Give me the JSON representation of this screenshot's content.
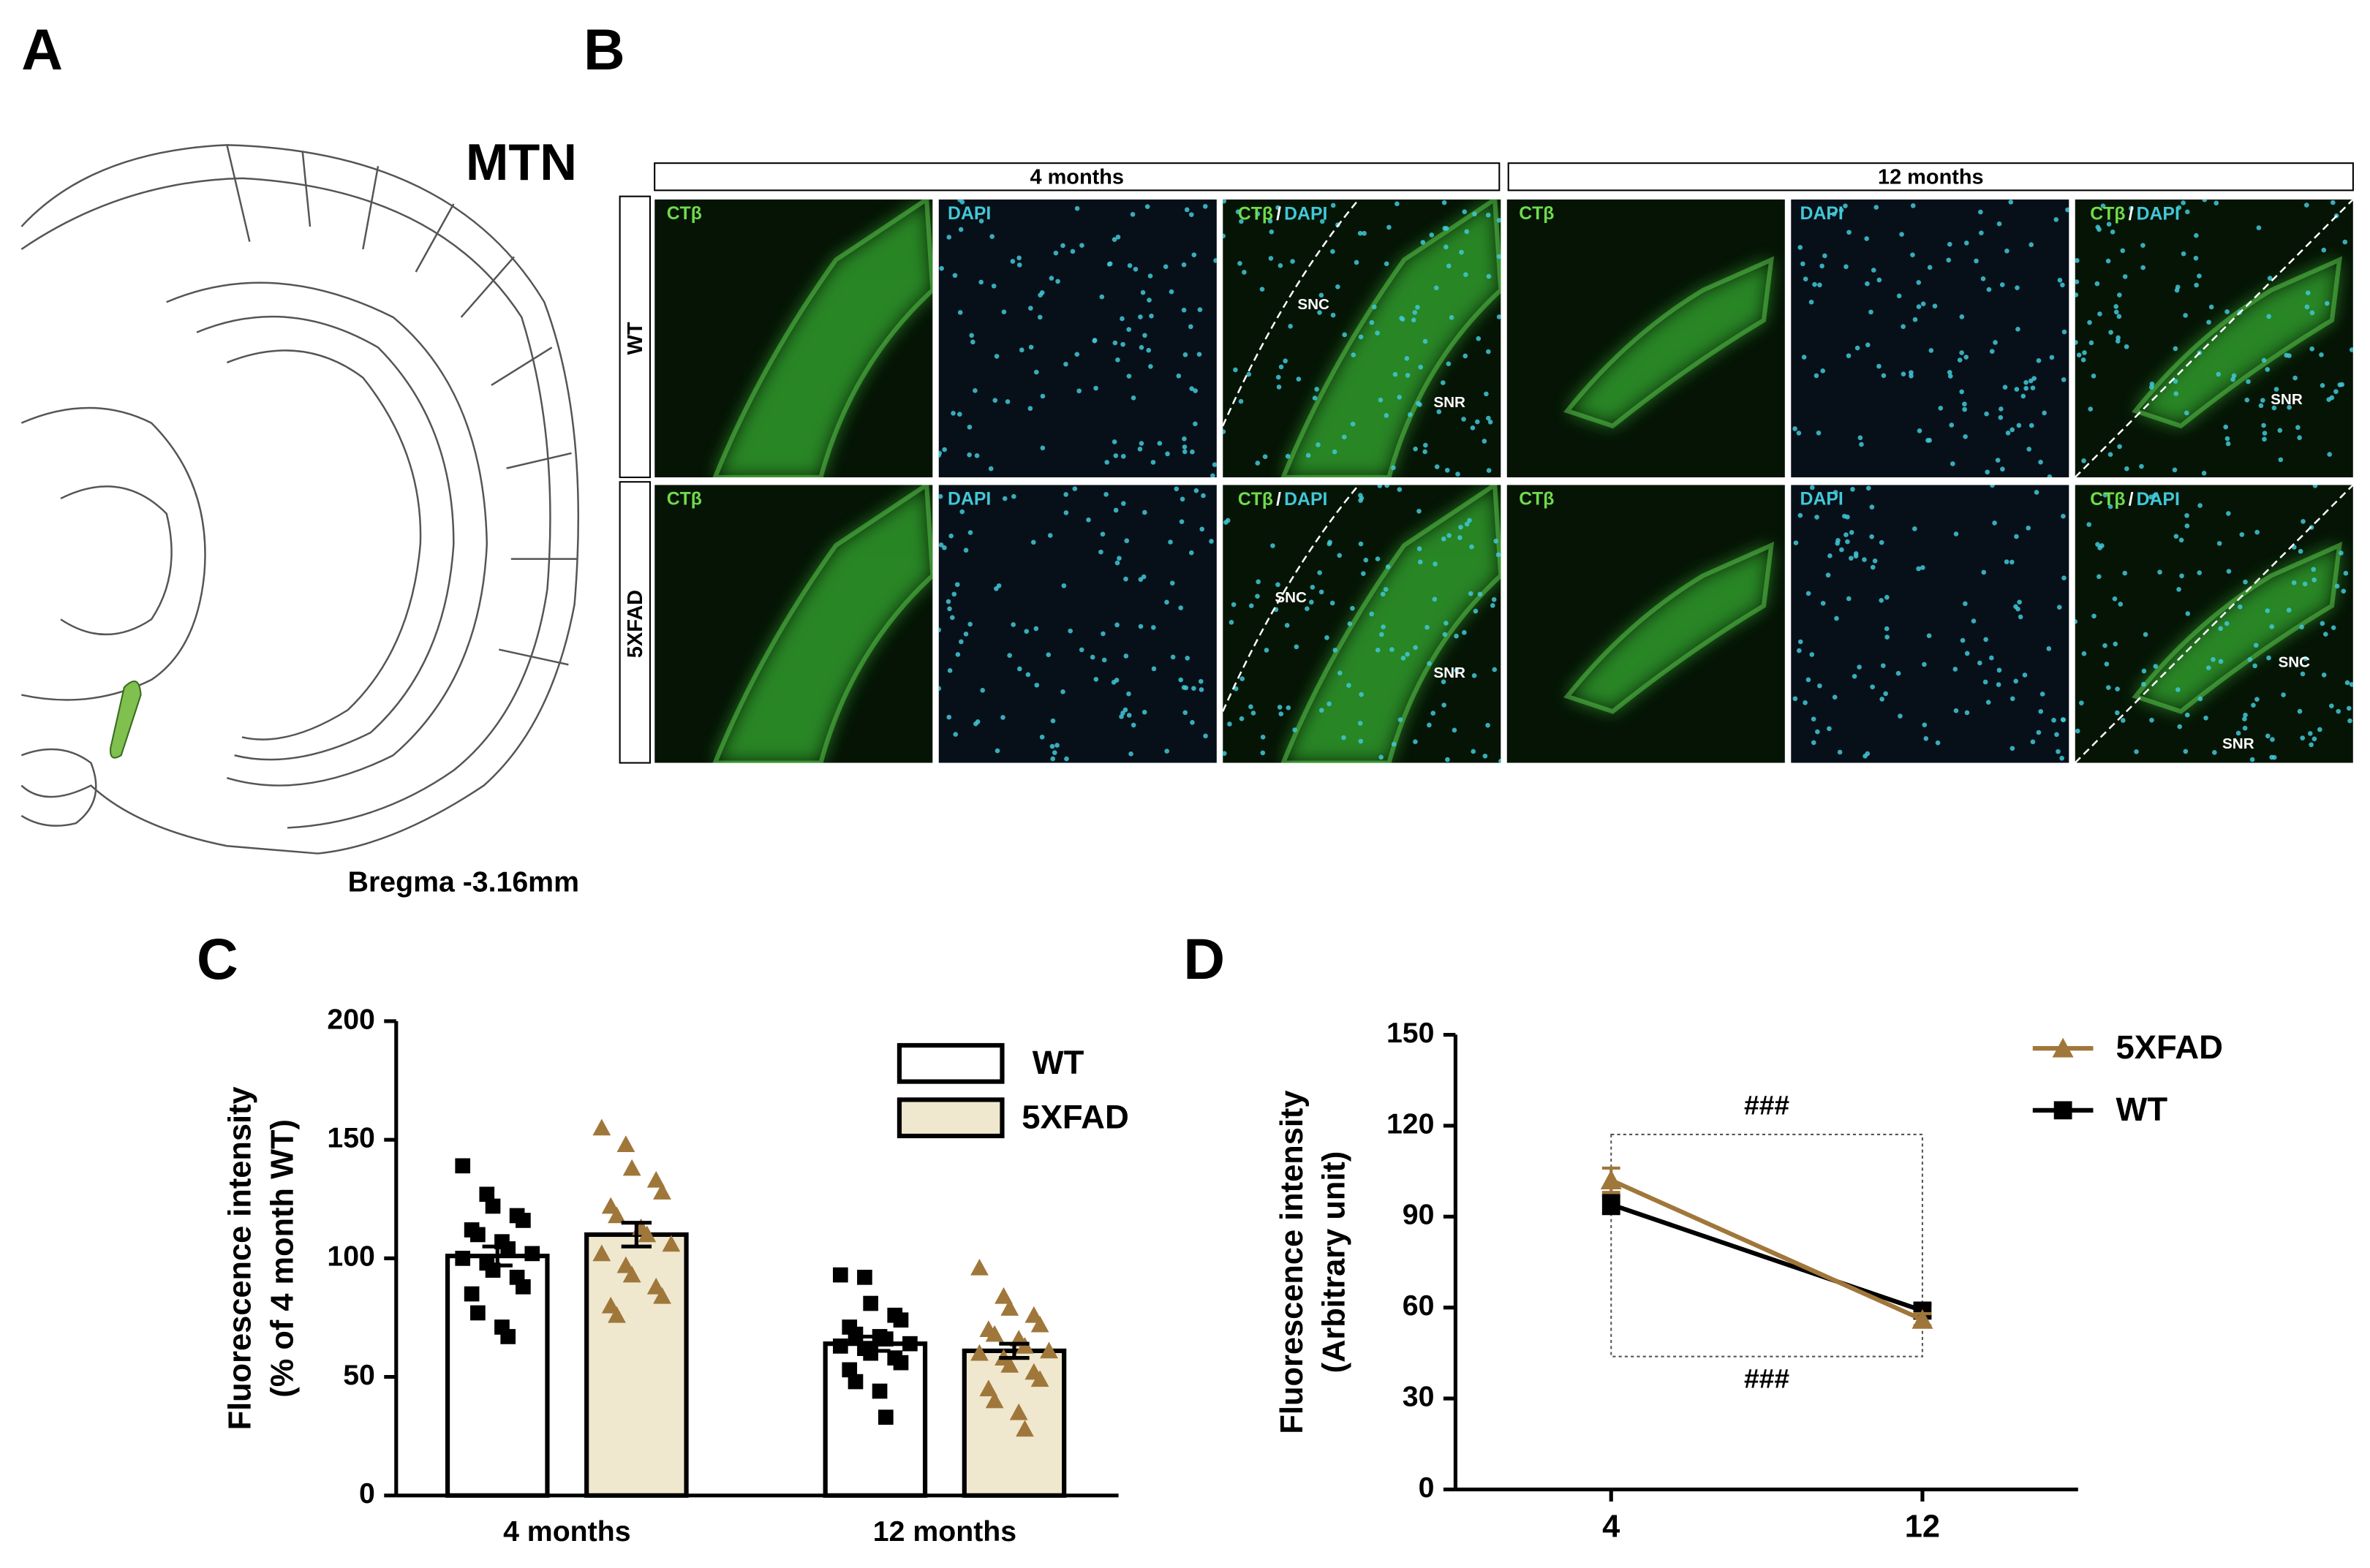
{
  "panels": {
    "A": {
      "label": "A",
      "region": "MTN",
      "bregma": "Bregma -3.16mm"
    },
    "B": {
      "label": "B",
      "ages": [
        "4 months",
        "12 months"
      ],
      "genotypes": [
        "WT",
        "5XFAD"
      ],
      "channels": [
        "CTβ",
        "DAPI"
      ],
      "separator": "/",
      "regions": [
        "SNC",
        "SNR"
      ]
    }
  },
  "chart_data": [
    {
      "type": "bar",
      "panel": "C",
      "y_label": [
        "Fluorescence intensity",
        "(% of 4 month WT)"
      ],
      "categories": [
        "4 months",
        "12 months"
      ],
      "ylim": [
        0,
        200
      ],
      "yticks": [
        0,
        50,
        100,
        150,
        200
      ],
      "legend": "top-right",
      "series": [
        {
          "name": "WT",
          "color": "#ffffff",
          "point_color": "#000000",
          "values": [
            101,
            64
          ],
          "errors": [
            4,
            3
          ],
          "points": [
            [
              139,
              127,
              122,
              118,
              116,
              112,
              110,
              107,
              104,
              102,
              100,
              98,
              95,
              92,
              88,
              85,
              77,
              71,
              67
            ],
            [
              93,
              92,
              81,
              76,
              74,
              71,
              68,
              67,
              66,
              64,
              63,
              62,
              60,
              58,
              56,
              53,
              48,
              44,
              33
            ]
          ]
        },
        {
          "name": "5XFAD",
          "color": "#efe8cf",
          "point_color": "#a0773a",
          "values": [
            110,
            61
          ],
          "errors": [
            5,
            3
          ],
          "points": [
            [
              155,
              148,
              138,
              133,
              128,
              122,
              118,
              113,
              110,
              106,
              102,
              97,
              93,
              88,
              84,
              80,
              76
            ],
            [
              96,
              84,
              79,
              76,
              72,
              70,
              68,
              66,
              63,
              61,
              60,
              58,
              55,
              52,
              49,
              45,
              40,
              35,
              28
            ]
          ]
        }
      ]
    },
    {
      "type": "line",
      "panel": "D",
      "y_label": [
        "Fluorescence intensity",
        "(Arbitrary unit)"
      ],
      "x": [
        4,
        12
      ],
      "xlim": [
        0,
        16
      ],
      "xticks": [
        4,
        12
      ],
      "ylim": [
        0,
        150
      ],
      "yticks": [
        0,
        30,
        60,
        90,
        120,
        150
      ],
      "legend": "top-right",
      "annotations": [
        "###",
        "###"
      ],
      "series": [
        {
          "name": "5XFAD",
          "color": "#a0773a",
          "marker": "triangle",
          "values": [
            102,
            56
          ],
          "errors": [
            4,
            2
          ]
        },
        {
          "name": "WT",
          "color": "#000000",
          "marker": "square",
          "values": [
            94,
            59
          ],
          "errors": [
            3,
            2
          ]
        }
      ]
    }
  ]
}
